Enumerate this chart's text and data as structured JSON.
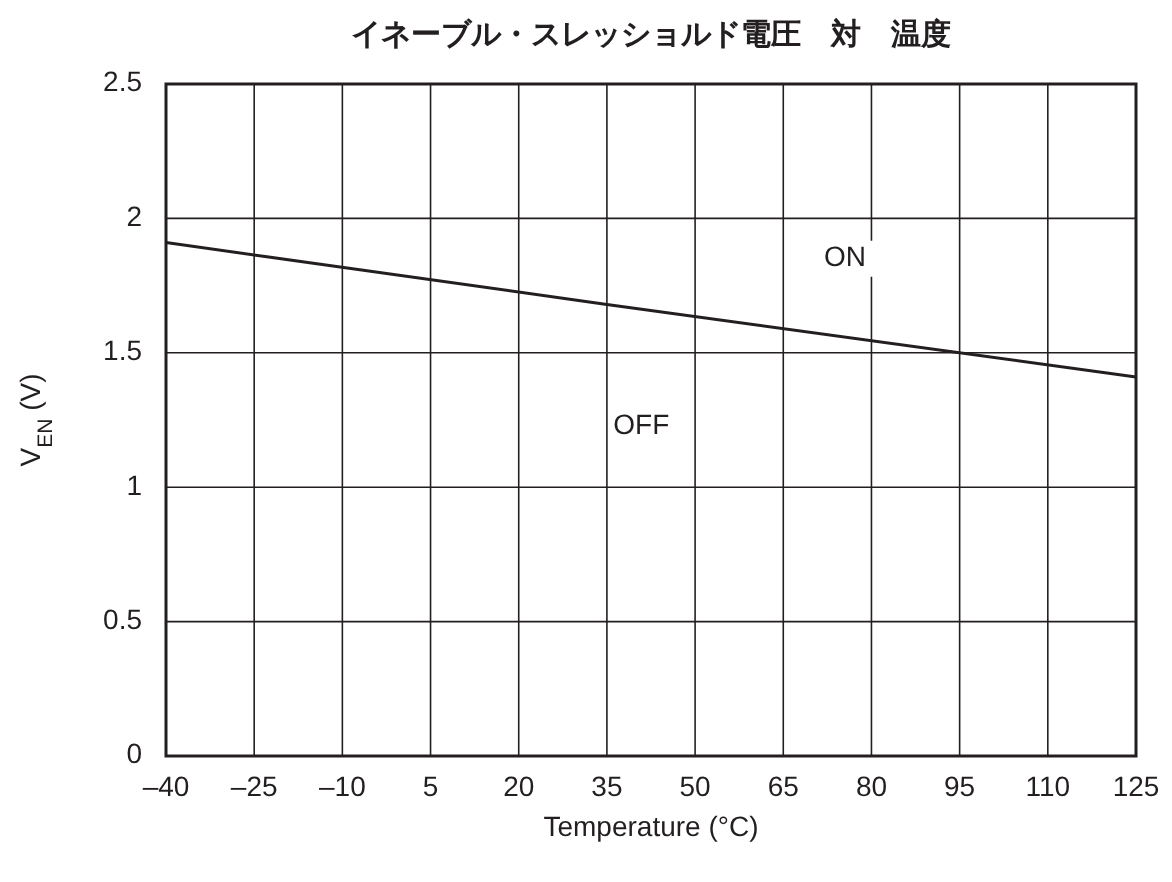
{
  "chart_data": {
    "type": "line",
    "title": "イネーブル・スレッショルド電圧　対　温度",
    "xlabel": "Temperature (°C)",
    "ylabel": "V$_{EN}$ (V)",
    "x": [
      -40,
      35,
      125
    ],
    "series": [
      {
        "color": "#231f20",
        "values": [
          1.91,
          1.68,
          1.41
        ]
      }
    ],
    "xlim": [
      -40,
      125
    ],
    "xticks": [
      {
        "value": -40,
        "label": "–40"
      },
      {
        "value": -25,
        "label": "–25"
      },
      {
        "value": -10,
        "label": "–10"
      },
      5,
      20,
      35,
      50,
      65,
      80,
      95,
      110,
      125
    ],
    "ylim": [
      0,
      2.5
    ],
    "yticks": [
      0,
      0.5,
      1,
      1.5,
      2,
      2.5
    ],
    "grid": true,
    "marker": "none",
    "line_style": "solid",
    "annotations": [
      "ON",
      "OFF"
    ]
  }
}
